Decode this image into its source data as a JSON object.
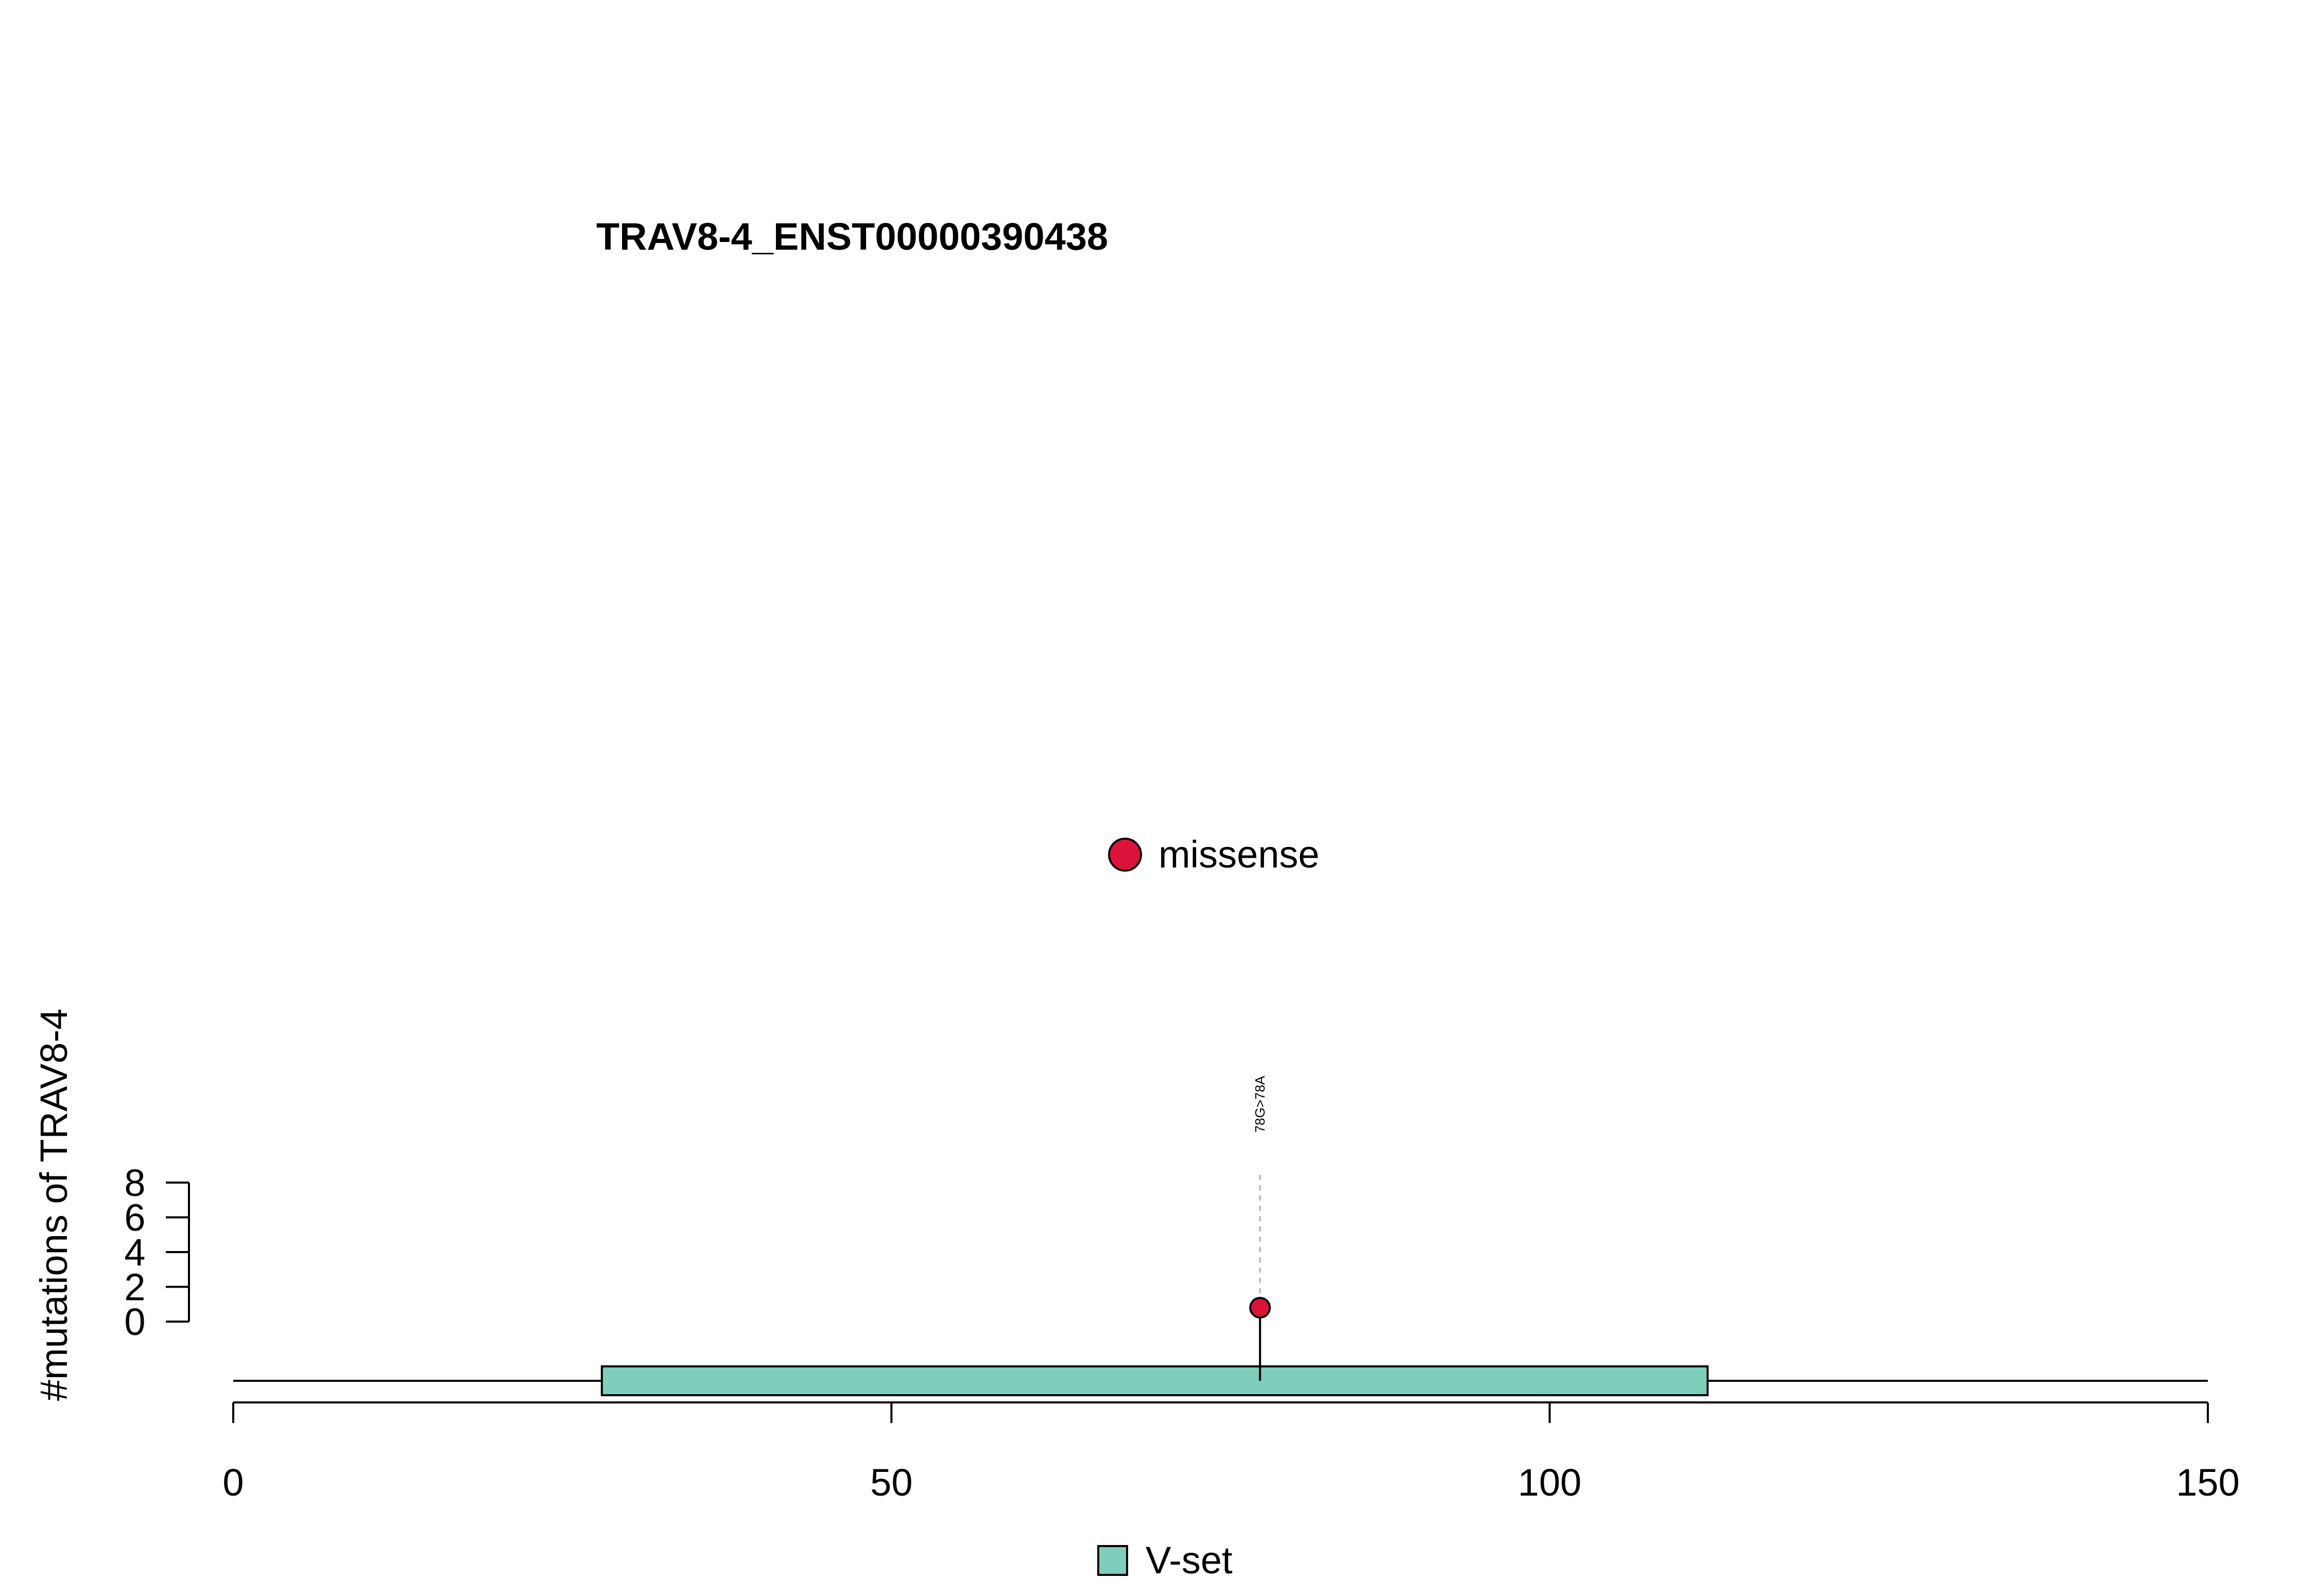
{
  "chart_data": {
    "type": "lollipop",
    "title": "TRAV8-4_ENST00000390438",
    "ylabel": "#mutations of TRAV8-4",
    "xlim": [
      0,
      150
    ],
    "x_ticks": [
      0,
      50,
      100,
      150
    ],
    "x_tick_labels": [
      "0",
      "50",
      "100",
      "150"
    ],
    "y_ticks": [
      0,
      2,
      4,
      6,
      8
    ],
    "y_tick_labels": [
      "0",
      "2",
      "4",
      "6",
      "8"
    ],
    "protein_length": 150,
    "domains": [
      {
        "name": "V-set",
        "start": 28,
        "end": 112,
        "color": "#7FCDBB"
      }
    ],
    "mutations": [
      {
        "position": 78,
        "count": 1,
        "label": "78G>78A",
        "type": "missense"
      }
    ],
    "legend_types": [
      {
        "name": "missense",
        "color": "#DC143C"
      }
    ],
    "legend_domains": [
      {
        "name": "V-set",
        "color": "#7FCDBB"
      }
    ]
  }
}
